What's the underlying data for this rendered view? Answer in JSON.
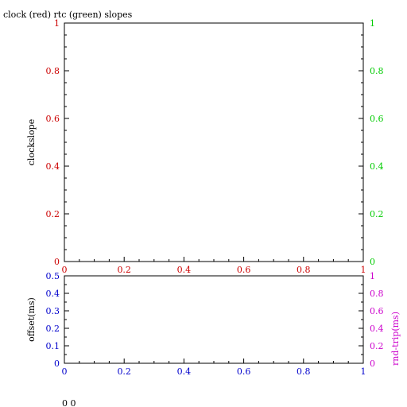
{
  "title": "clock (red) rtc (green) slopes",
  "footer_text": "0 0",
  "colors": {
    "axis": "#000000",
    "red": "#cc0000",
    "green": "#00cc00",
    "blue": "#0000cc",
    "magenta": "#cc00cc"
  },
  "chart_data": [
    {
      "type": "line",
      "title": "clock (red) rtc (green) slopes",
      "ylabel": "clockslope",
      "xlim": [
        0,
        1
      ],
      "ylim_left": [
        0,
        1
      ],
      "ylim_right": [
        0,
        1
      ],
      "x_ticks": [
        "0",
        "0.2",
        "0.4",
        "0.6",
        "0.8",
        "1"
      ],
      "y_ticks_left": [
        "0",
        "0.2",
        "0.4",
        "0.6",
        "0.8",
        "1"
      ],
      "y_ticks_right": [
        "0",
        "0.2",
        "0.4",
        "0.6",
        "0.8",
        "1"
      ],
      "series": [],
      "grid": false
    },
    {
      "type": "line",
      "ylabel_left": "offset(ms)",
      "ylabel_right": "rnd-trip(ms)",
      "xlim": [
        0,
        1
      ],
      "ylim_left": [
        0,
        0.5
      ],
      "ylim_right": [
        0,
        1
      ],
      "x_ticks": [
        "0",
        "0.2",
        "0.4",
        "0.6",
        "0.8",
        "1"
      ],
      "y_ticks_left": [
        "0",
        "0.1",
        "0.2",
        "0.3",
        "0.4",
        "0.5"
      ],
      "y_ticks_right": [
        "0",
        "0.2",
        "0.4",
        "0.6",
        "0.8",
        "1"
      ],
      "series": [],
      "grid": false
    }
  ]
}
